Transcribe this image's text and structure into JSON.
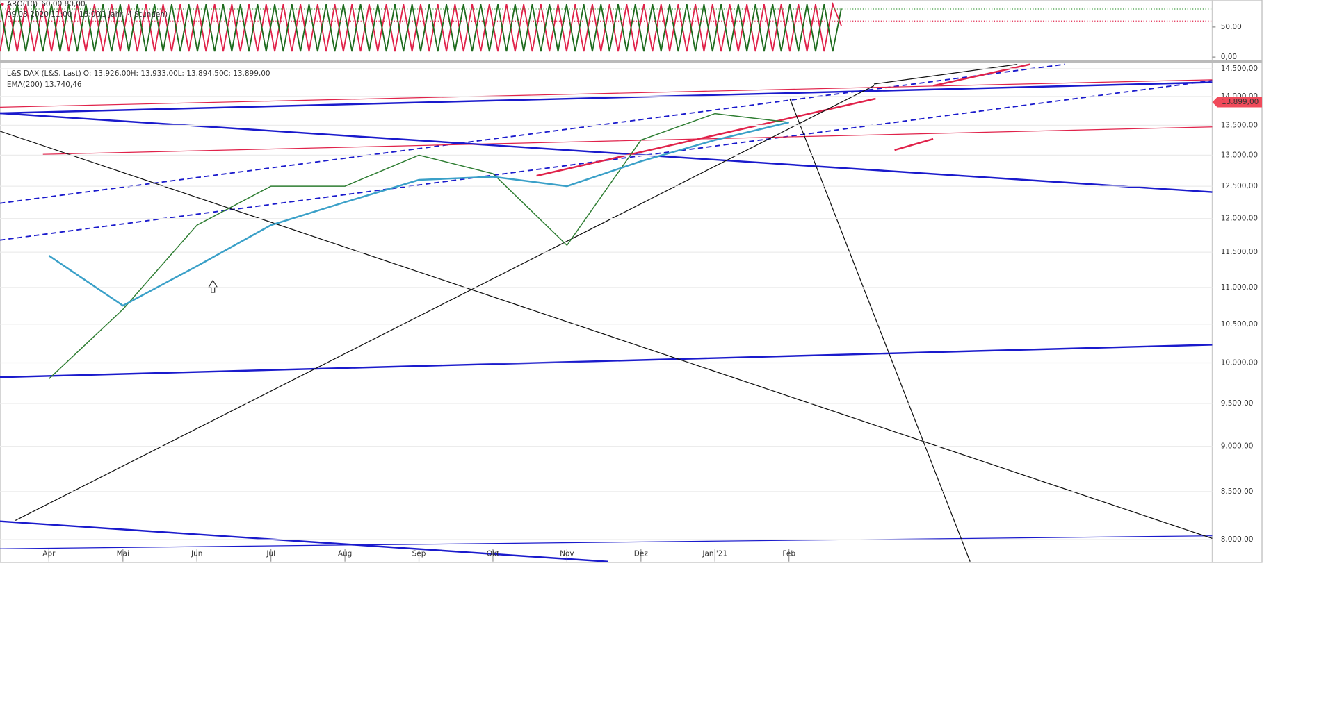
{
  "chart_data": [
    {
      "type": "oscillator",
      "indicator": "ARO(10)",
      "levels": [
        {
          "value": 60,
          "label": "60,00"
        },
        {
          "value": 80,
          "label": "80,00"
        }
      ],
      "period": "09.03.2020 11:00 - 15:00",
      "span": "(1 Jahr, 4 Stunden)",
      "ylim": [
        -5,
        95
      ],
      "yticks": [
        {
          "value": 0,
          "label": "0,00"
        },
        {
          "value": 50,
          "label": "50,00"
        }
      ]
    },
    {
      "type": "line",
      "log_scale": true,
      "categories": [
        "Apr",
        "Mai",
        "Jun",
        "Jul",
        "Aug",
        "Sep",
        "Okt",
        "Nov",
        "Dez",
        "Jan '21",
        "Feb"
      ],
      "series": [
        {
          "name": "L&S DAX (L&S, Last)",
          "color": "#2e7d32",
          "values": [
            9800,
            10700,
            11900,
            12500,
            12500,
            13000,
            12700,
            11600,
            13250,
            13700,
            13550
          ],
          "ohlc": [
            "O: 13.926,00",
            "H: 13.933,00",
            "L: 13.894,50",
            "C: 13.899,00"
          ]
        },
        {
          "name": "EMA(200)",
          "color": "#3aa0c8",
          "values": [
            11450,
            10750,
            11300,
            11900,
            12250,
            12600,
            12650,
            12500,
            12900,
            13250,
            13550
          ],
          "last_label": "13.740,46"
        }
      ],
      "last_price": {
        "value": 13899,
        "label": "13.899,00"
      },
      "ylim": [
        7780,
        14580
      ],
      "yticks": [
        {
          "value": 8000,
          "label": "8.000,00"
        },
        {
          "value": 8500,
          "label": "8.500,00"
        },
        {
          "value": 9000,
          "label": "9.000,00"
        },
        {
          "value": 9500,
          "label": "9.500,00"
        },
        {
          "value": 10000,
          "label": "10.000,00"
        },
        {
          "value": 10500,
          "label": "10.500,00"
        },
        {
          "value": 11000,
          "label": "11.000,00"
        },
        {
          "value": 11500,
          "label": "11.500,00"
        },
        {
          "value": 12000,
          "label": "12.000,00"
        },
        {
          "value": 12500,
          "label": "12.500,00"
        },
        {
          "value": 13000,
          "label": "13.000,00"
        },
        {
          "value": 13500,
          "label": "13.500,00"
        },
        {
          "value": 14000,
          "label": "14.000,00"
        },
        {
          "value": 14500,
          "label": "14.500,00"
        }
      ],
      "grid": true
    }
  ]
}
